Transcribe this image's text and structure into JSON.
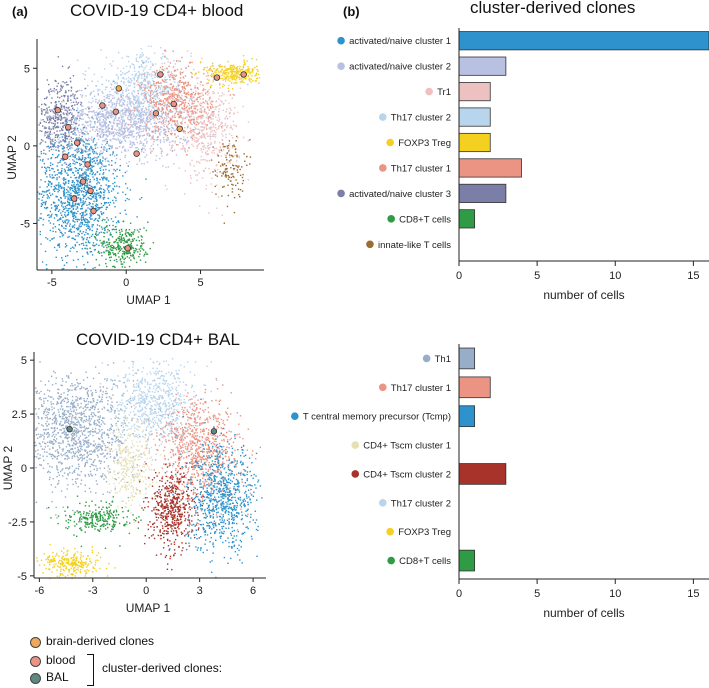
{
  "panels": {
    "a": "(a)",
    "b": "(b)"
  },
  "chart_data": [
    {
      "type": "scatter",
      "title": "COVID-19 CD4+ blood",
      "xlabel": "UMAP 1",
      "ylabel": "UMAP 2",
      "xlim": [
        -6,
        9
      ],
      "ylim": [
        -8,
        6.5
      ],
      "xticks": [
        {
          "v": -5,
          "t": "-5"
        },
        {
          "v": 0,
          "t": "0"
        },
        {
          "v": 5,
          "t": "5"
        }
      ],
      "yticks": [
        {
          "v": 5,
          "t": "5"
        },
        {
          "v": 0,
          "t": "0"
        },
        {
          "v": -5,
          "t": "-5"
        }
      ],
      "clusters": [
        {
          "name": "activated/naive cluster 1",
          "color": "#2e93cc",
          "cx": -3.2,
          "cy": -3.0,
          "sx": 1.4,
          "sy": 2.1,
          "n": 1300
        },
        {
          "name": "activated/naive cluster 2",
          "color": "#b9c1e3",
          "cx": -0.2,
          "cy": 1.6,
          "sx": 2.3,
          "sy": 1.1,
          "n": 1300
        },
        {
          "name": "Th17 cluster 2",
          "color": "#b8d5ee",
          "cx": 1.2,
          "cy": 3.9,
          "sx": 1.5,
          "sy": 1.0,
          "n": 500
        },
        {
          "name": "Tr1",
          "color": "#eec1c1",
          "cx": 5.3,
          "cy": 1.2,
          "sx": 1.1,
          "sy": 1.6,
          "n": 500
        },
        {
          "name": "Th17 cluster 1",
          "color": "#ec9483",
          "cx": 3.3,
          "cy": 2.9,
          "sx": 1.2,
          "sy": 1.2,
          "n": 500
        },
        {
          "name": "activated/naive cluster 3",
          "color": "#7b7fa7",
          "cx": -4.5,
          "cy": 1.8,
          "sx": 0.8,
          "sy": 1.3,
          "n": 400
        },
        {
          "name": "FOXP3 Treg",
          "color": "#f4d020",
          "cx": 7.2,
          "cy": 4.7,
          "sx": 0.9,
          "sy": 0.35,
          "n": 300
        },
        {
          "name": "CD8+T cells",
          "color": "#2f9c45",
          "cx": -0.2,
          "cy": -6.4,
          "sx": 0.8,
          "sy": 0.7,
          "n": 300
        },
        {
          "name": "innate-like T cells",
          "color": "#9b6d2e",
          "cx": 6.9,
          "cy": -1.4,
          "sx": 0.5,
          "sy": 1.0,
          "n": 120
        }
      ],
      "highlight_points": [
        {
          "x": -0.5,
          "y": 3.7,
          "group": "brain-derived clones"
        },
        {
          "x": 3.6,
          "y": 1.1,
          "group": "brain-derived clones"
        },
        {
          "x": -1.6,
          "y": 2.6,
          "group": "blood"
        },
        {
          "x": 2.3,
          "y": 4.6,
          "group": "blood"
        },
        {
          "x": 7.9,
          "y": 4.6,
          "group": "blood"
        },
        {
          "x": -3.3,
          "y": 0.2,
          "group": "blood"
        },
        {
          "x": -2.9,
          "y": -2.3,
          "group": "blood"
        },
        {
          "x": -4.1,
          "y": -0.7,
          "group": "blood"
        },
        {
          "x": 0.7,
          "y": -0.5,
          "group": "blood"
        },
        {
          "x": 2.0,
          "y": 2.1,
          "group": "blood"
        },
        {
          "x": -2.2,
          "y": -4.2,
          "group": "blood"
        },
        {
          "x": 0.1,
          "y": -6.6,
          "group": "blood"
        },
        {
          "x": -3.5,
          "y": -3.4,
          "group": "blood"
        },
        {
          "x": -0.7,
          "y": 2.2,
          "group": "blood"
        },
        {
          "x": 3.2,
          "y": 2.7,
          "group": "blood"
        },
        {
          "x": -4.6,
          "y": 2.3,
          "group": "blood"
        },
        {
          "x": -3.9,
          "y": 1.2,
          "group": "blood"
        },
        {
          "x": -2.6,
          "y": -1.2,
          "group": "blood"
        },
        {
          "x": -2.4,
          "y": -2.9,
          "group": "blood"
        },
        {
          "x": 6.1,
          "y": 4.4,
          "group": "blood"
        }
      ]
    },
    {
      "type": "bar",
      "orientation": "horizontal",
      "title": "cluster-derived clones",
      "xlabel": "number of cells",
      "xlim": [
        0,
        16
      ],
      "xticks": [
        {
          "v": 0,
          "t": "0"
        },
        {
          "v": 5,
          "t": "5"
        },
        {
          "v": 10,
          "t": "10"
        },
        {
          "v": 15,
          "t": "15"
        }
      ],
      "categories": [
        "activated/naive cluster 1",
        "activated/naive cluster 2",
        "Tr1",
        "Th17 cluster 2",
        "FOXP3 Treg",
        "Th17 cluster 1",
        "activated/naive cluster 3",
        "CD8+T cells",
        "innate-like T cells"
      ],
      "values": [
        16,
        3,
        2,
        2,
        2,
        4,
        3,
        1,
        0
      ],
      "colors": [
        "#2e93cc",
        "#b9c1e3",
        "#eec1c1",
        "#b8d5ee",
        "#f4d020",
        "#ec9483",
        "#7b7fa7",
        "#2f9c45",
        "#9b6d2e"
      ]
    },
    {
      "type": "scatter",
      "title": "COVID-19 CD4+ BAL",
      "xlabel": "UMAP 1",
      "ylabel": "UMAP 2",
      "xlim": [
        -6.3,
        6.5
      ],
      "ylim": [
        -5.1,
        5.1
      ],
      "xticks": [
        {
          "v": -6,
          "t": "-6"
        },
        {
          "v": -3,
          "t": "-3"
        },
        {
          "v": 0,
          "t": "0"
        },
        {
          "v": 3,
          "t": "3"
        },
        {
          "v": 6,
          "t": "6"
        }
      ],
      "yticks": [
        {
          "v": 5,
          "t": "5"
        },
        {
          "v": 2.5,
          "t": "2.5"
        },
        {
          "v": 0,
          "t": "0"
        },
        {
          "v": -2.5,
          "t": "-2.5"
        },
        {
          "v": -5,
          "t": "-5"
        }
      ],
      "clusters": [
        {
          "name": "Th1",
          "color": "#98aec8",
          "cx": -4.0,
          "cy": 1.8,
          "sx": 1.5,
          "sy": 1.3,
          "n": 1200
        },
        {
          "name": "Th17 cluster 2",
          "color": "#b8d5ee",
          "cx": 0.5,
          "cy": 3.0,
          "sx": 1.1,
          "sy": 1.0,
          "n": 700
        },
        {
          "name": "Th17 cluster 1",
          "color": "#ec9483",
          "cx": 3.0,
          "cy": 0.9,
          "sx": 1.1,
          "sy": 1.2,
          "n": 800
        },
        {
          "name": "T central memory precursor (Tcmp)",
          "color": "#2e93cc",
          "cx": 4.2,
          "cy": -1.4,
          "sx": 1.0,
          "sy": 1.2,
          "n": 800
        },
        {
          "name": "CD4+ Tscm cluster 1",
          "color": "#e6e0b2",
          "cx": -0.9,
          "cy": 0.2,
          "sx": 0.6,
          "sy": 1.0,
          "n": 300
        },
        {
          "name": "CD4+ Tscm cluster 2",
          "color": "#a8332a",
          "cx": 1.4,
          "cy": -1.9,
          "sx": 0.6,
          "sy": 0.9,
          "n": 500
        },
        {
          "name": "FOXP3 Treg",
          "color": "#f4d020",
          "cx": -4.2,
          "cy": -4.4,
          "sx": 0.8,
          "sy": 0.3,
          "n": 250
        },
        {
          "name": "CD8+T cells",
          "color": "#2f9c45",
          "cx": -2.7,
          "cy": -2.3,
          "sx": 0.9,
          "sy": 0.35,
          "n": 250
        }
      ],
      "highlight_points": [
        {
          "x": -4.3,
          "y": 1.8,
          "group": "BAL"
        },
        {
          "x": 3.8,
          "y": 1.7,
          "group": "BAL"
        }
      ]
    },
    {
      "type": "bar",
      "orientation": "horizontal",
      "title": "",
      "xlabel": "number of cells",
      "xlim": [
        0,
        16
      ],
      "xticks": [
        {
          "v": 0,
          "t": "0"
        },
        {
          "v": 5,
          "t": "5"
        },
        {
          "v": 10,
          "t": "10"
        },
        {
          "v": 15,
          "t": "15"
        }
      ],
      "categories": [
        "Th1",
        "Th17 cluster 1",
        "T central memory precursor (Tcmp)",
        "CD4+ Tscm cluster 1",
        "CD4+ Tscm cluster 2",
        "Th17 cluster 2",
        "FOXP3 Treg",
        "CD8+T cells"
      ],
      "values": [
        1,
        2,
        1,
        0,
        3,
        0,
        0,
        1
      ],
      "colors": [
        "#98aec8",
        "#ec9483",
        "#2e93cc",
        "#e6e0b2",
        "#a8332a",
        "#b8d5ee",
        "#f4d020",
        "#2f9c45"
      ]
    }
  ],
  "legend": {
    "items": [
      {
        "label": "brain-derived clones",
        "color": "#f0a85a"
      },
      {
        "label": "blood",
        "color": "#ec9483"
      },
      {
        "label": "BAL",
        "color": "#5e8780"
      }
    ],
    "bracket_label": "cluster-derived clones:"
  }
}
